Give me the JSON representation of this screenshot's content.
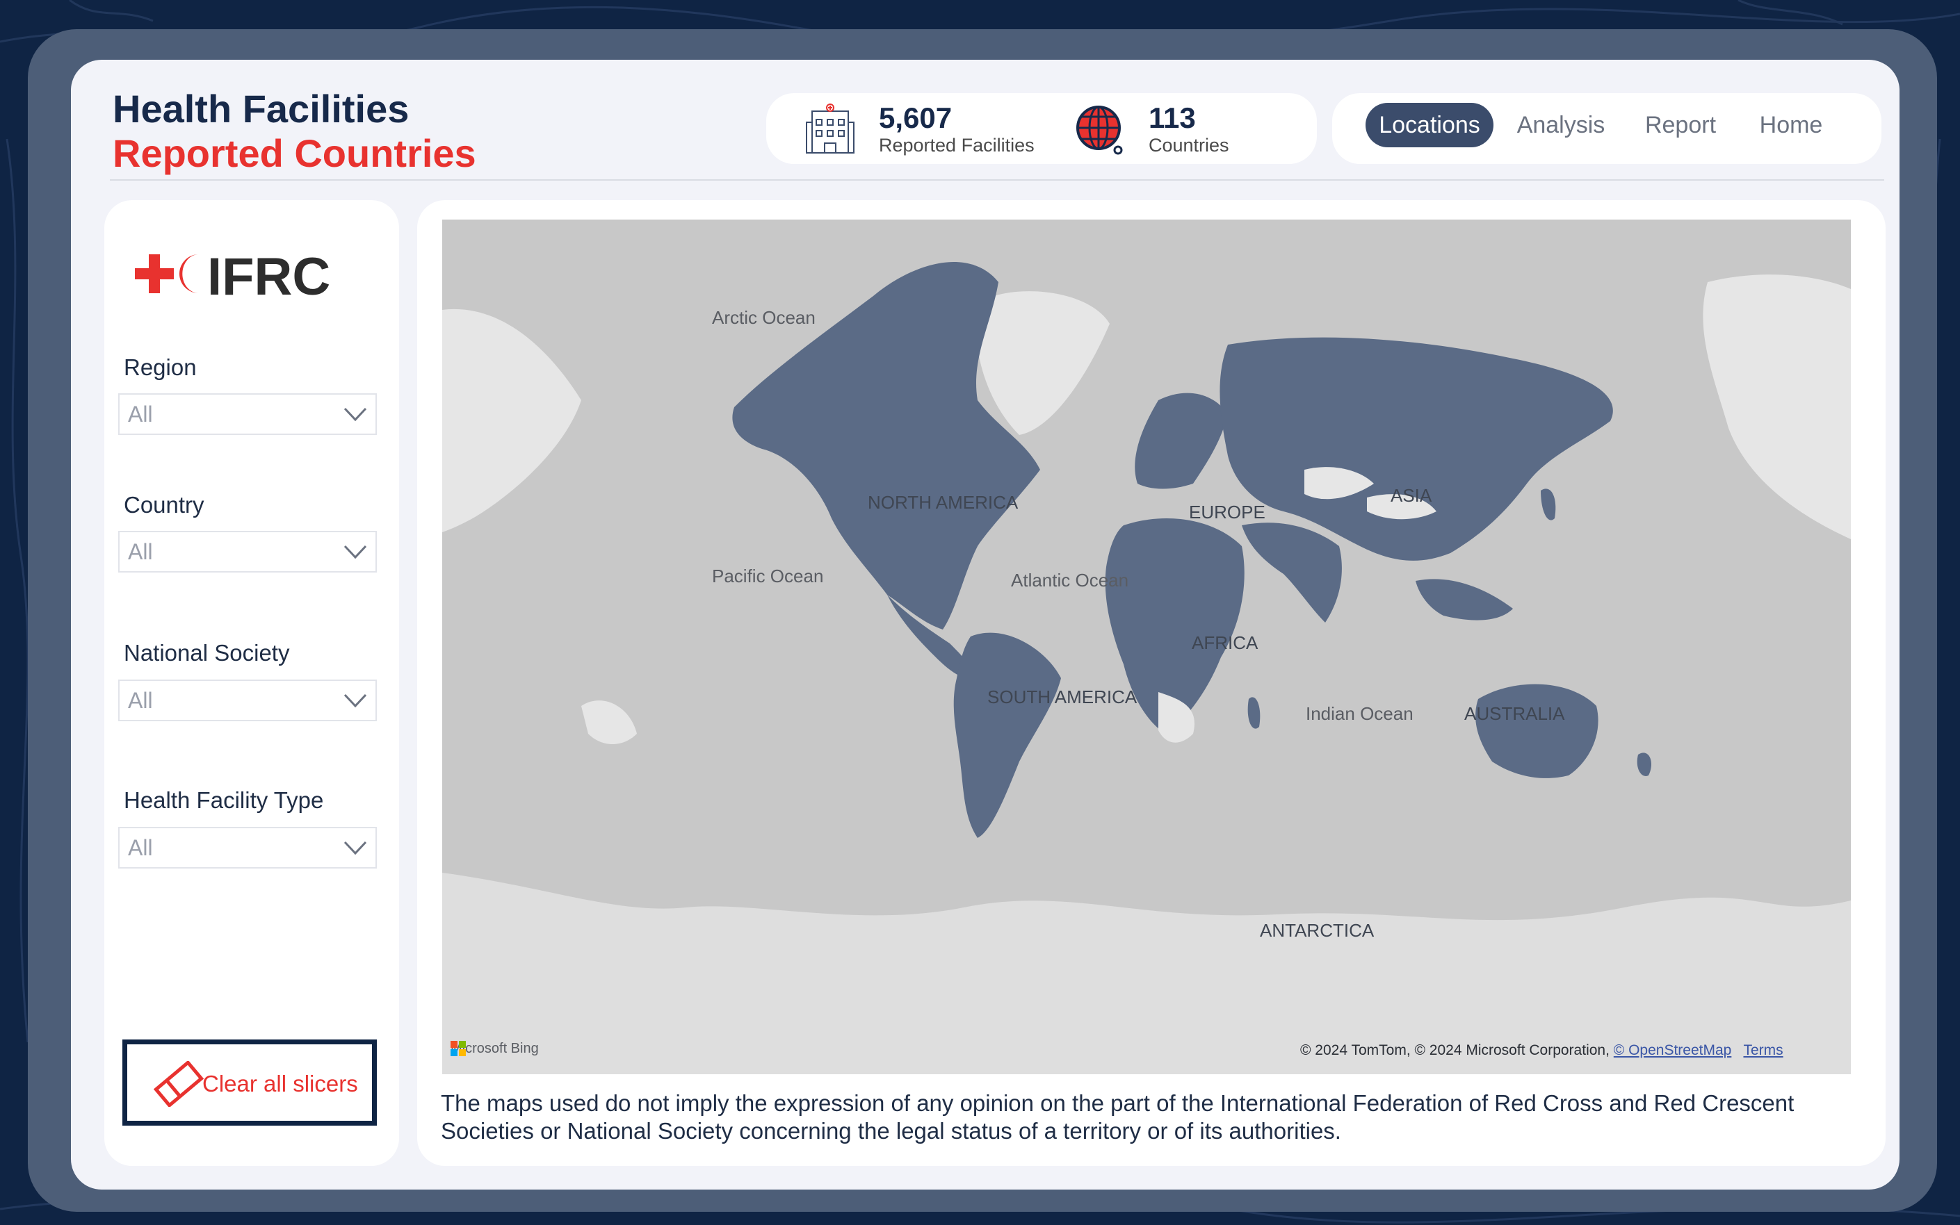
{
  "header": {
    "title_line1": "Health Facilities",
    "title_line2": "Reported Countries"
  },
  "kpis": [
    {
      "value": "5,607",
      "label": "Reported Facilities",
      "icon": "hospital-building-icon"
    },
    {
      "value": "113",
      "label": "Countries",
      "icon": "globe-icon"
    }
  ],
  "nav": {
    "items": [
      {
        "label": "Locations",
        "active": true
      },
      {
        "label": "Analysis",
        "active": false
      },
      {
        "label": "Report",
        "active": false
      },
      {
        "label": "Home",
        "active": false
      }
    ]
  },
  "sidebar": {
    "logo_text": "IFRC",
    "slicers": [
      {
        "label": "Region",
        "value": "All"
      },
      {
        "label": "Country",
        "value": "All"
      },
      {
        "label": "National Society",
        "value": "All"
      },
      {
        "label": "Health Facility Type",
        "value": "All"
      }
    ],
    "clear_label": "Clear all slicers"
  },
  "map": {
    "oceans": [
      "Arctic Ocean",
      "Pacific Ocean",
      "Atlantic Ocean",
      "Indian Ocean"
    ],
    "continents": [
      "NORTH AMERICA",
      "EUROPE",
      "ASIA",
      "AFRICA",
      "SOUTH AMERICA",
      "AUSTRALIA",
      "ANTARCTICA"
    ],
    "provider": "Microsoft Bing",
    "attribution": "© 2024 TomTom, © 2024 Microsoft Corporation,",
    "osm_link": "© OpenStreetMap",
    "terms_link": "Terms"
  },
  "disclaimer": "The maps used do not imply the expression of any opinion on the part of the International Federation of Red Cross and Red Crescent Societies or National Society concerning the legal status of a territory or of its authorities.",
  "colors": {
    "navy": "#0f2444",
    "accent_red": "#e8322f",
    "reported_country": "#5b6b86",
    "unreported_land": "#e6e6e6",
    "ocean": "#c8c8c8"
  }
}
